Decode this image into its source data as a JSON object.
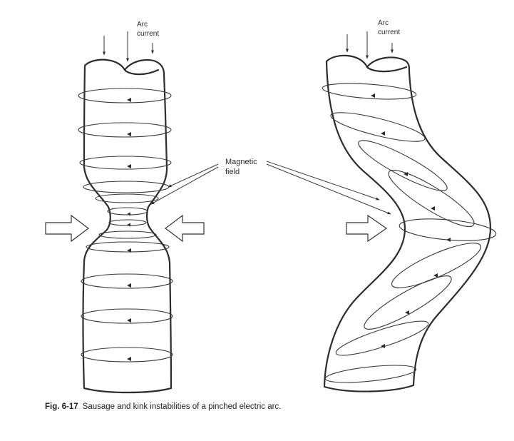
{
  "figure": {
    "left_diagram": {
      "arc_current_label_line1": "Arc",
      "arc_current_label_line2": "current"
    },
    "right_diagram": {
      "arc_current_label_line1": "Arc",
      "arc_current_label_line2": "current"
    },
    "magnetic_field_label_line1": "Magnetic",
    "magnetic_field_label_line2": "field",
    "caption_number": "Fig. 6-17",
    "caption_text": "Sausage and kink instabilities of a pinched electric arc."
  }
}
